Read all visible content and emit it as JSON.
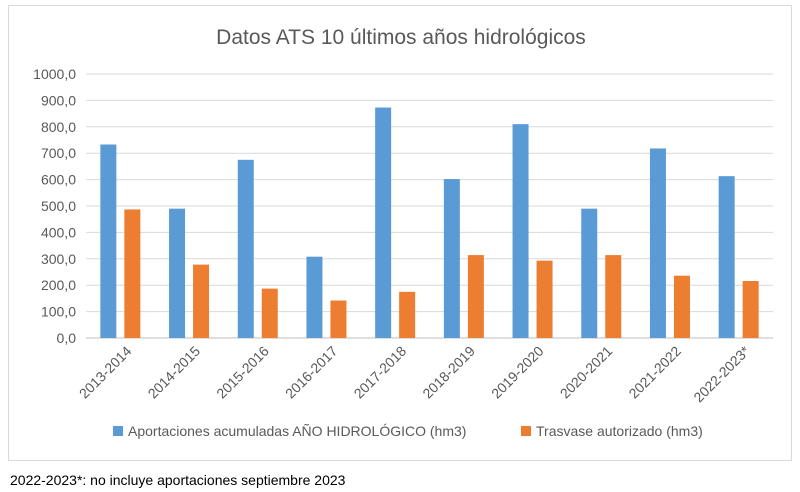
{
  "chart_data": {
    "type": "bar",
    "title": "Datos ATS 10 últimos años hidrológicos",
    "xlabel": "",
    "ylabel": "",
    "categories": [
      "2013-2014",
      "2014-2015",
      "2015-2016",
      "2016-2017",
      "2017-2018",
      "2018-2019",
      "2019-2020",
      "2020-2021",
      "2021-2022",
      "2022-2023*"
    ],
    "series": [
      {
        "name": "Aportaciones acumuladas AÑO HIDROLÓGICO (hm3)",
        "color": "#5b9bd5",
        "values": [
          733,
          490,
          675,
          308,
          873,
          602,
          810,
          490,
          718,
          613
        ]
      },
      {
        "name": "Trasvase autorizado (hm3)",
        "color": "#ed7d31",
        "values": [
          487,
          278,
          187,
          142,
          175,
          314,
          293,
          314,
          236,
          216
        ]
      }
    ],
    "ylim": [
      0,
      1000
    ],
    "yticks": [
      "0,0",
      "100,0",
      "200,0",
      "300,0",
      "400,0",
      "500,0",
      "600,0",
      "700,0",
      "800,0",
      "900,0",
      "1000,0"
    ],
    "grid": true,
    "legend_position": "bottom"
  },
  "footnote": "2022-2023*: no incluye aportaciones septiembre 2023"
}
